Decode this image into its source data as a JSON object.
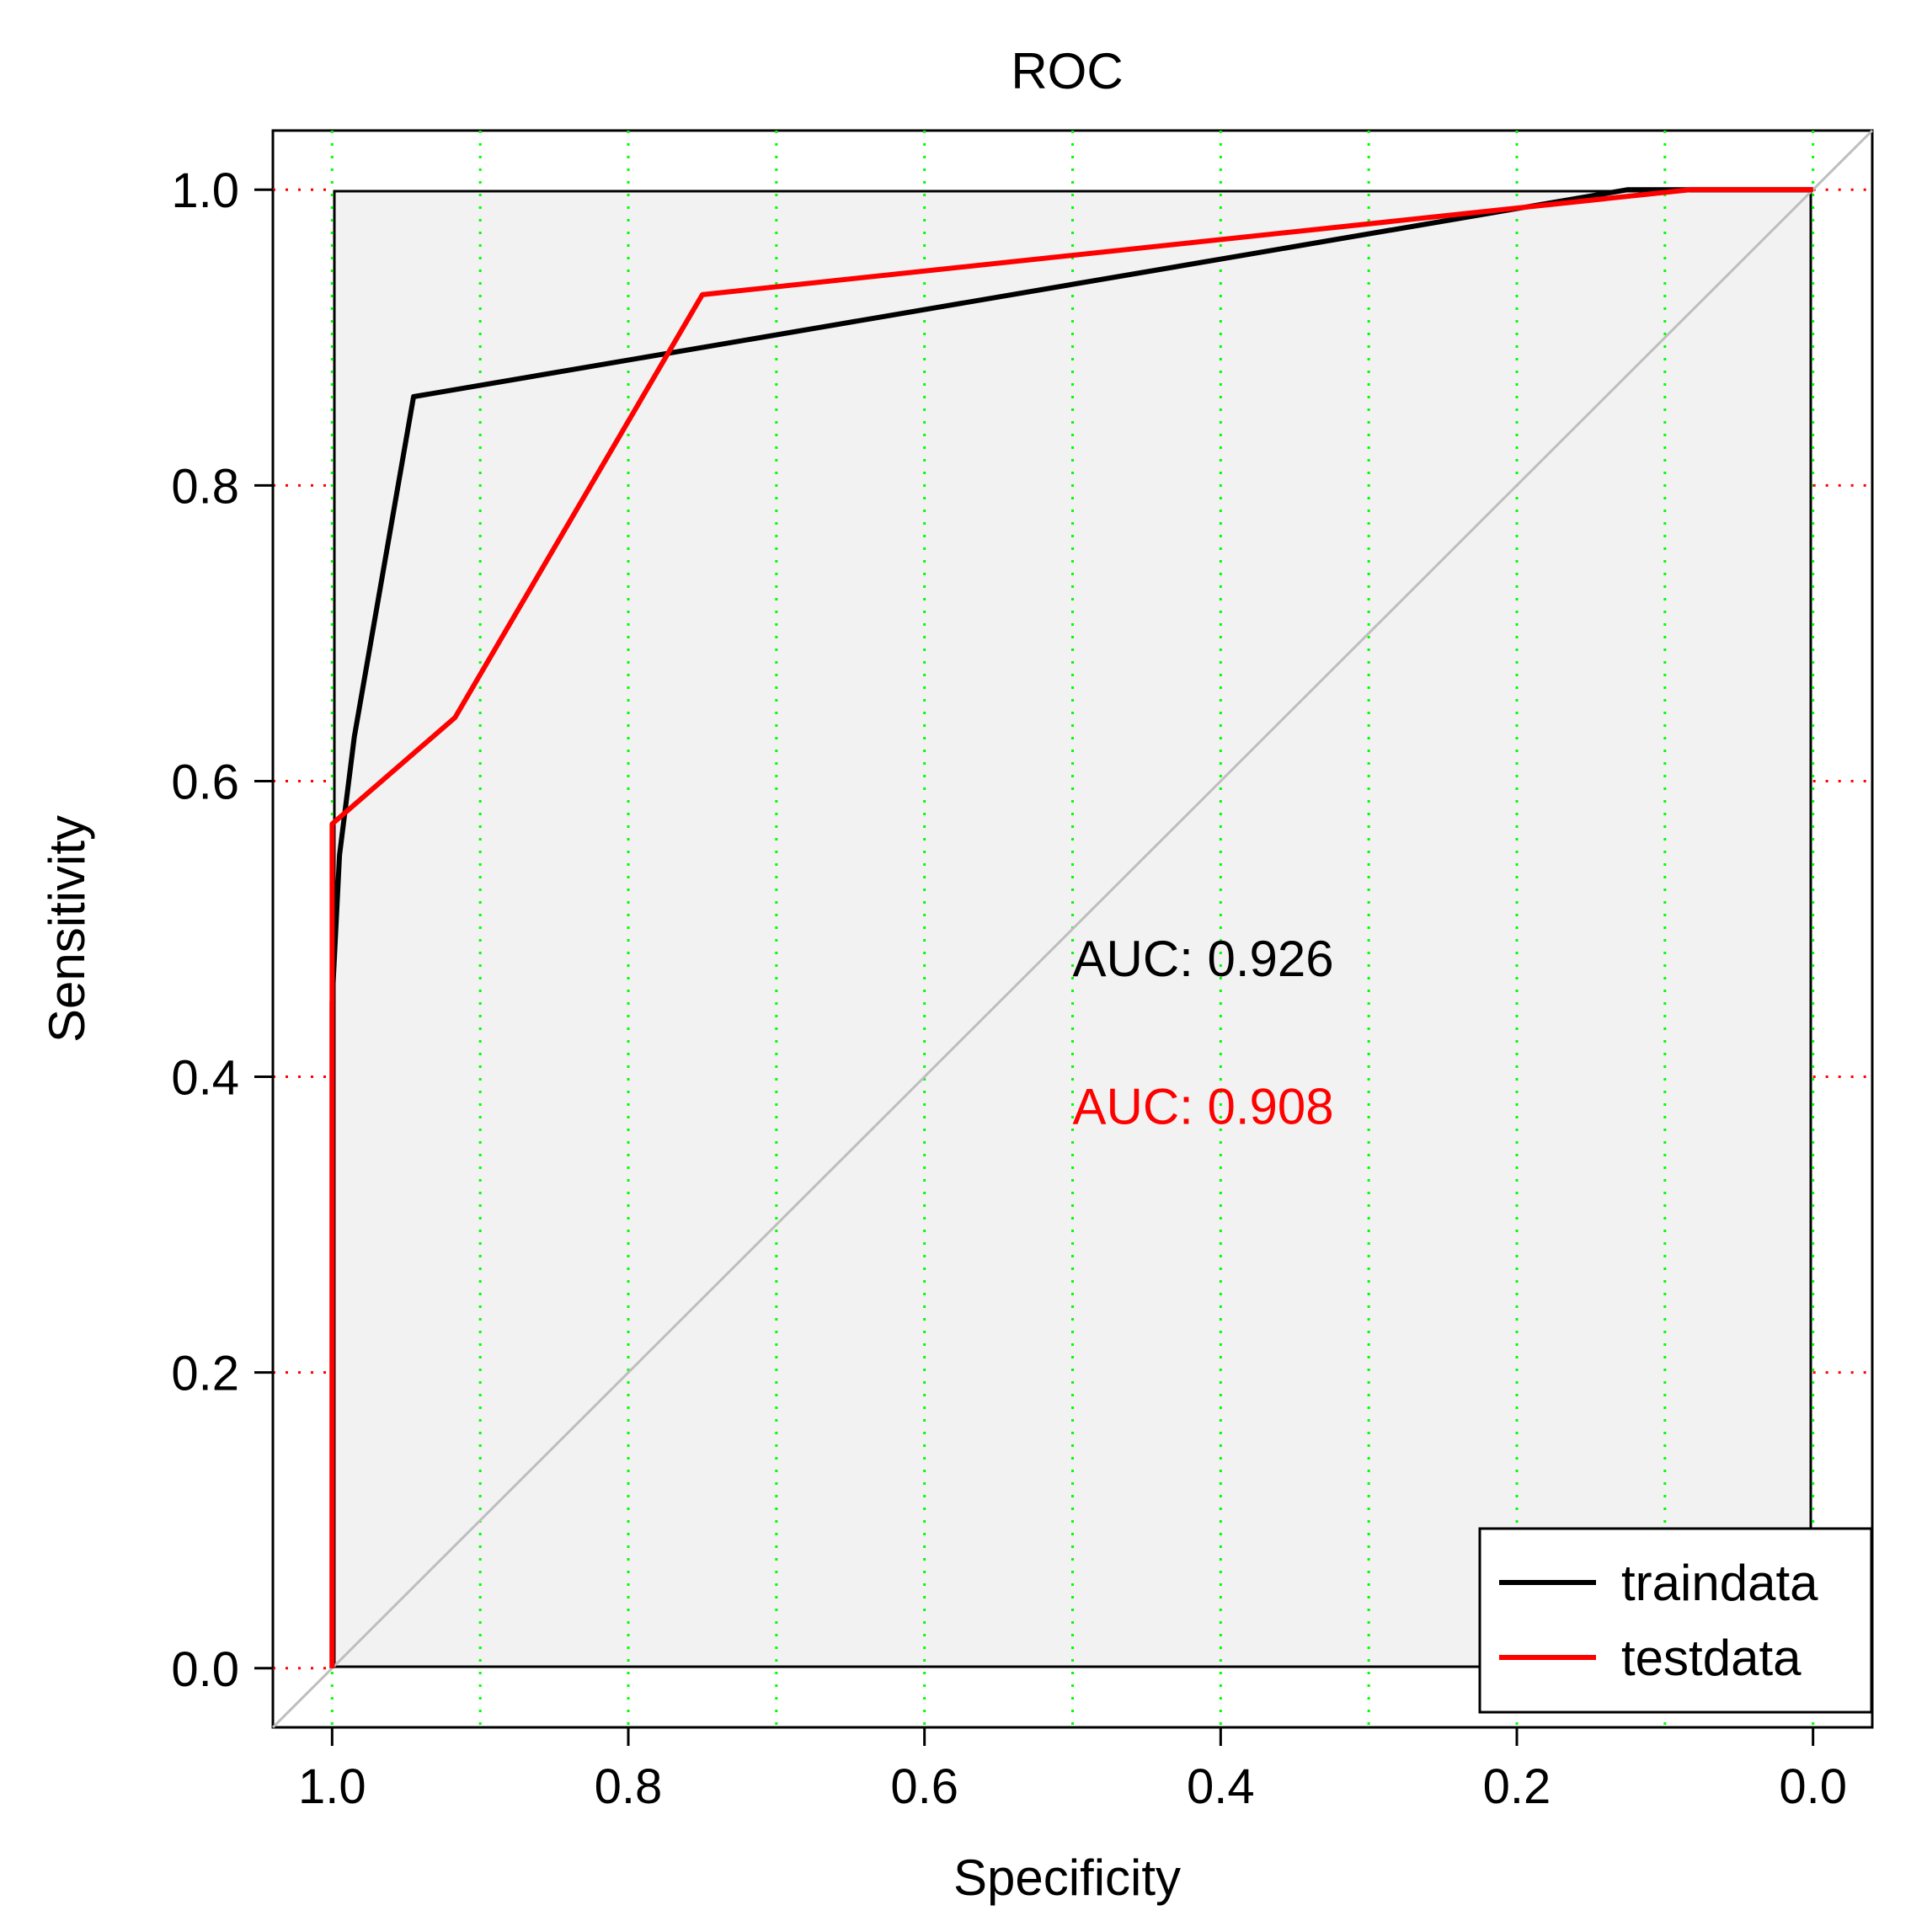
{
  "chart_data": {
    "type": "line",
    "title": "ROC",
    "xlabel": "Specificity",
    "ylabel": "Sensitivity",
    "x_reversed": true,
    "xlim": [
      1.04,
      -0.04
    ],
    "ylim": [
      -0.04,
      1.04
    ],
    "x_ticks": [
      {
        "value": 1.0,
        "label": "1.0"
      },
      {
        "value": 0.8,
        "label": "0.8"
      },
      {
        "value": 0.6,
        "label": "0.6"
      },
      {
        "value": 0.4,
        "label": "0.4"
      },
      {
        "value": 0.2,
        "label": "0.2"
      },
      {
        "value": 0.0,
        "label": "0.0"
      }
    ],
    "y_ticks": [
      {
        "value": 0.0,
        "label": "0.0"
      },
      {
        "value": 0.2,
        "label": "0.2"
      },
      {
        "value": 0.4,
        "label": "0.4"
      },
      {
        "value": 0.6,
        "label": "0.6"
      },
      {
        "value": 0.8,
        "label": "0.8"
      },
      {
        "value": 1.0,
        "label": "1.0"
      }
    ],
    "x_grid_values": [
      1.0,
      0.9,
      0.8,
      0.7,
      0.6,
      0.5,
      0.4,
      0.3,
      0.2,
      0.1,
      0.0
    ],
    "y_grid_values": [
      0.0,
      0.2,
      0.4,
      0.6,
      0.8,
      1.0
    ],
    "grid": true,
    "series": [
      {
        "name": "traindata",
        "color": "#000000",
        "specificity": [
          1.0,
          1.0,
          0.995,
          0.985,
          0.945,
          0.125,
          0.0
        ],
        "sensitivity": [
          0.0,
          0.45,
          0.55,
          0.63,
          0.86,
          1.0,
          1.0
        ]
      },
      {
        "name": "testdata",
        "color": "#ff0000",
        "specificity": [
          1.0,
          1.0,
          0.917,
          0.75,
          0.083,
          0.0
        ],
        "sensitivity": [
          0.0,
          0.571,
          0.643,
          0.929,
          1.0,
          1.0
        ]
      }
    ],
    "annotations": [
      {
        "text": "AUC: 0.926",
        "color": "#000000",
        "x": 0.5,
        "y": 0.48
      },
      {
        "text": "AUC: 0.908",
        "color": "#ff0000",
        "x": 0.5,
        "y": 0.38
      }
    ],
    "reference_line": {
      "from": [
        1.0,
        0.0
      ],
      "to": [
        0.0,
        1.0
      ],
      "color": "#bebebe"
    },
    "legend": {
      "position": "bottom-right",
      "entries": [
        "traindata",
        "testdata"
      ]
    }
  }
}
